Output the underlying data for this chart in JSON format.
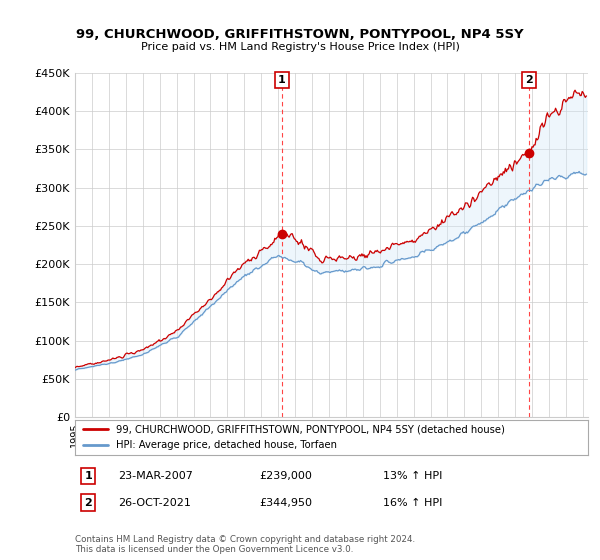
{
  "title": "99, CHURCHWOOD, GRIFFITHSTOWN, PONTYPOOL, NP4 5SY",
  "subtitle": "Price paid vs. HM Land Registry's House Price Index (HPI)",
  "yticks": [
    0,
    50000,
    100000,
    150000,
    200000,
    250000,
    300000,
    350000,
    400000,
    450000
  ],
  "ytick_labels": [
    "£0",
    "£50K",
    "£100K",
    "£150K",
    "£200K",
    "£250K",
    "£300K",
    "£350K",
    "£400K",
    "£450K"
  ],
  "legend_red": "99, CHURCHWOOD, GRIFFITHSTOWN, PONTYPOOL, NP4 5SY (detached house)",
  "legend_blue": "HPI: Average price, detached house, Torfaen",
  "sale1_date": "23-MAR-2007",
  "sale1_price": "£239,000",
  "sale1_hpi": "13% ↑ HPI",
  "sale1_year": 2007.23,
  "sale1_value": 239000,
  "sale2_date": "26-OCT-2021",
  "sale2_price": "£344,950",
  "sale2_hpi": "16% ↑ HPI",
  "sale2_year": 2021.82,
  "sale2_value": 344950,
  "footer": "Contains HM Land Registry data © Crown copyright and database right 2024.\nThis data is licensed under the Open Government Licence v3.0.",
  "red_color": "#cc0000",
  "blue_color": "#6699cc",
  "fill_color": "#d0e8f8",
  "vline_color": "#ff4444",
  "background_color": "#ffffff",
  "grid_color": "#cccccc"
}
